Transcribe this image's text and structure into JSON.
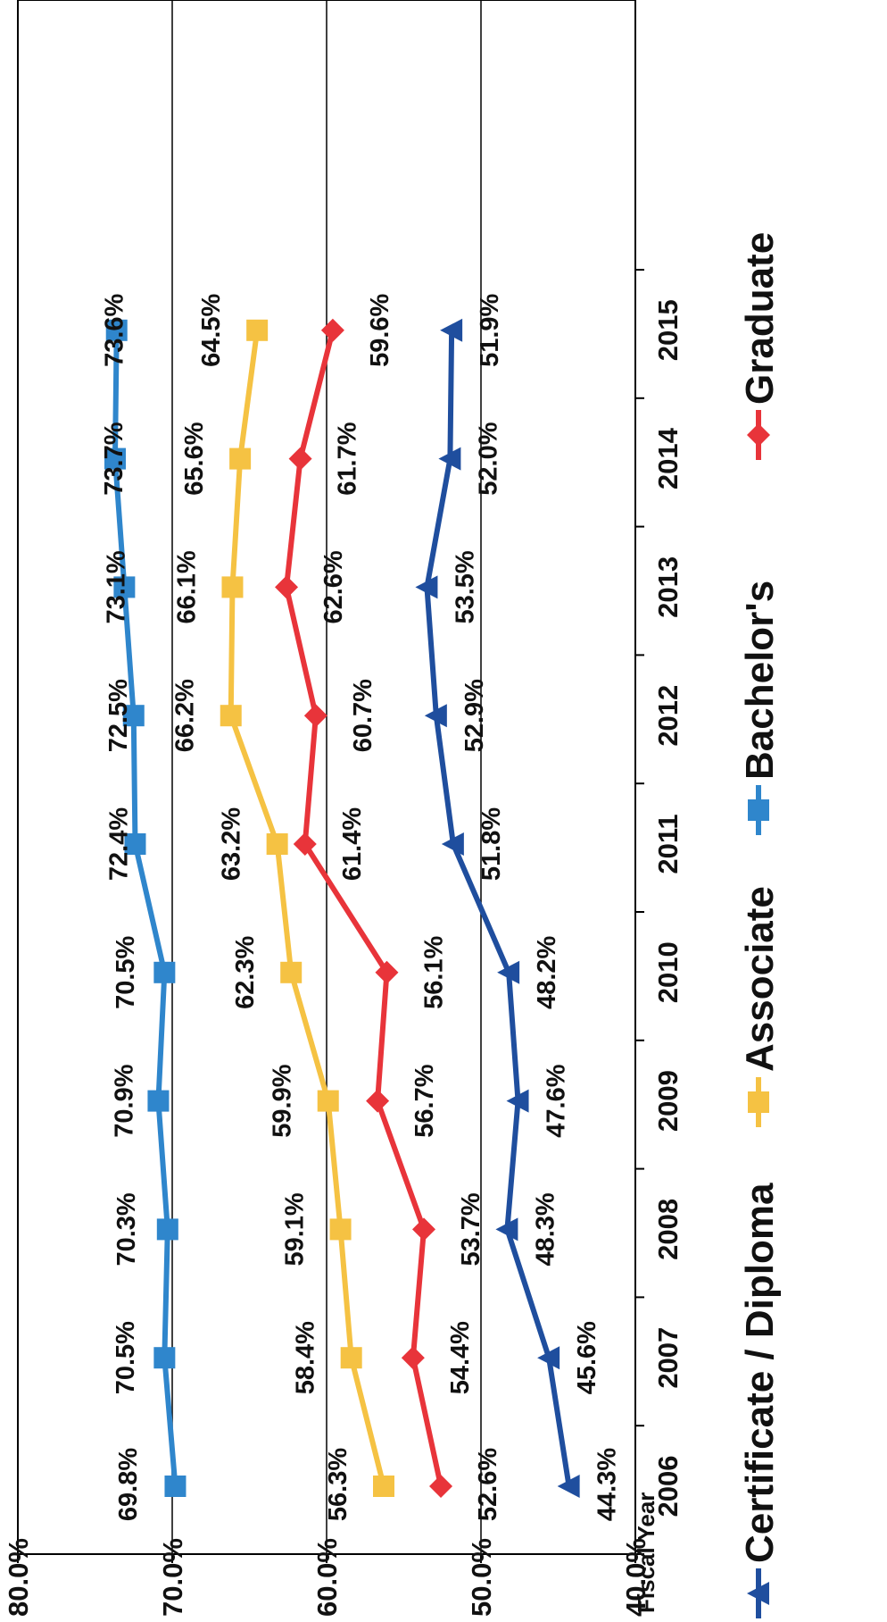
{
  "chart_data": {
    "type": "line",
    "xlabel": "Fiscal Year",
    "categories": [
      "2006",
      "2007",
      "2008",
      "2009",
      "2010",
      "2011",
      "2012",
      "2013",
      "2014",
      "2015"
    ],
    "ylim": [
      40,
      80
    ],
    "yticks": [
      "40.0%",
      "50.0%",
      "60.0%",
      "70.0%",
      "80.0%"
    ],
    "grid": true,
    "legend_position": "bottom",
    "series": [
      {
        "name": "Certificate / Diploma",
        "color": "#1f4e9e",
        "marker": "triangle",
        "values": [
          44.3,
          45.6,
          48.3,
          47.6,
          48.2,
          51.8,
          52.9,
          53.5,
          52.0,
          51.9
        ],
        "labels": [
          "44.3%",
          "45.6%",
          "48.3%",
          "47.6%",
          "48.2%",
          "51.8%",
          "52.9%",
          "53.5%",
          "52.0%",
          "51.9%"
        ]
      },
      {
        "name": "Associate",
        "color": "#f5c243",
        "marker": "square",
        "values": [
          56.3,
          58.4,
          59.1,
          59.9,
          62.3,
          63.2,
          66.2,
          66.1,
          65.6,
          64.5
        ],
        "labels": [
          "56.3%",
          "58.4%",
          "59.1%",
          "59.9%",
          "62.3%",
          "63.2%",
          "66.2%",
          "66.1%",
          "65.6%",
          "64.5%"
        ]
      },
      {
        "name": "Bachelor's",
        "color": "#2f86cc",
        "marker": "square",
        "values": [
          69.8,
          70.5,
          70.3,
          70.9,
          70.5,
          72.4,
          72.5,
          73.1,
          73.7,
          73.6
        ],
        "labels": [
          "69.8%",
          "70.5%",
          "70.3%",
          "70.9%",
          "70.5%",
          "72.4%",
          "72.5%",
          "73.1%",
          "73.7%",
          "73.6%"
        ]
      },
      {
        "name": "Graduate",
        "color": "#e8343a",
        "marker": "diamond",
        "values": [
          52.6,
          54.4,
          53.7,
          56.7,
          56.1,
          61.4,
          60.7,
          62.6,
          61.7,
          59.6
        ],
        "labels": [
          "52.6%",
          "54.4%",
          "53.7%",
          "56.7%",
          "56.1%",
          "61.4%",
          "60.7%",
          "62.6%",
          "61.7%",
          "59.6%"
        ]
      }
    ]
  }
}
